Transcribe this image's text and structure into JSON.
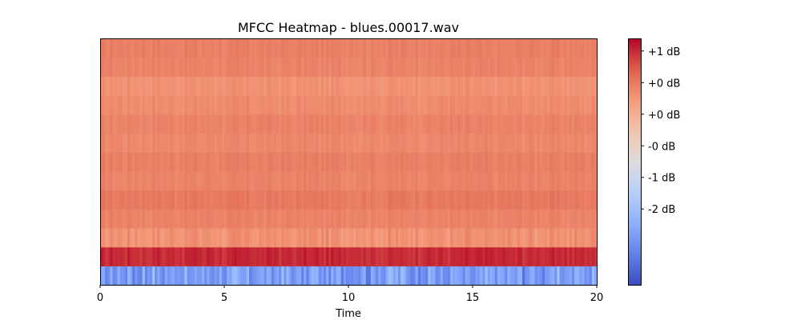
{
  "chart_data": {
    "type": "heatmap",
    "title": "MFCC Heatmap - blues.00017.wav",
    "xlabel": "Time",
    "ylabel": "",
    "xlim": [
      0,
      20
    ],
    "x_ticks": [
      0,
      5,
      10,
      15,
      20
    ],
    "x_tick_labels": [
      "0",
      "5",
      "10",
      "15",
      "20"
    ],
    "y_ticks_visible": false,
    "colormap": "coolwarm",
    "colorbar": {
      "value_range": [
        -2.7,
        1.2
      ],
      "ticks": [
        1,
        0.5,
        0,
        -0.5,
        -1,
        -1.5
      ],
      "tick_labels": [
        "+1 dB",
        "+0 dB",
        "+0 dB",
        "-0 dB",
        "-1 dB",
        "-2 dB"
      ]
    },
    "grid": false,
    "rows_bottom_to_top": [
      {
        "mean": -1.9,
        "spread": 0.5
      },
      {
        "mean": 1.0,
        "spread": 0.12
      },
      {
        "mean": 0.3,
        "spread": 0.15
      },
      {
        "mean": 0.42,
        "spread": 0.08
      },
      {
        "mean": 0.5,
        "spread": 0.08
      },
      {
        "mean": 0.42,
        "spread": 0.08
      },
      {
        "mean": 0.45,
        "spread": 0.08
      },
      {
        "mean": 0.38,
        "spread": 0.08
      },
      {
        "mean": 0.42,
        "spread": 0.08
      },
      {
        "mean": 0.35,
        "spread": 0.08
      },
      {
        "mean": 0.3,
        "spread": 0.08
      },
      {
        "mean": 0.42,
        "spread": 0.08
      },
      {
        "mean": 0.45,
        "spread": 0.08
      }
    ],
    "columns": 200
  }
}
